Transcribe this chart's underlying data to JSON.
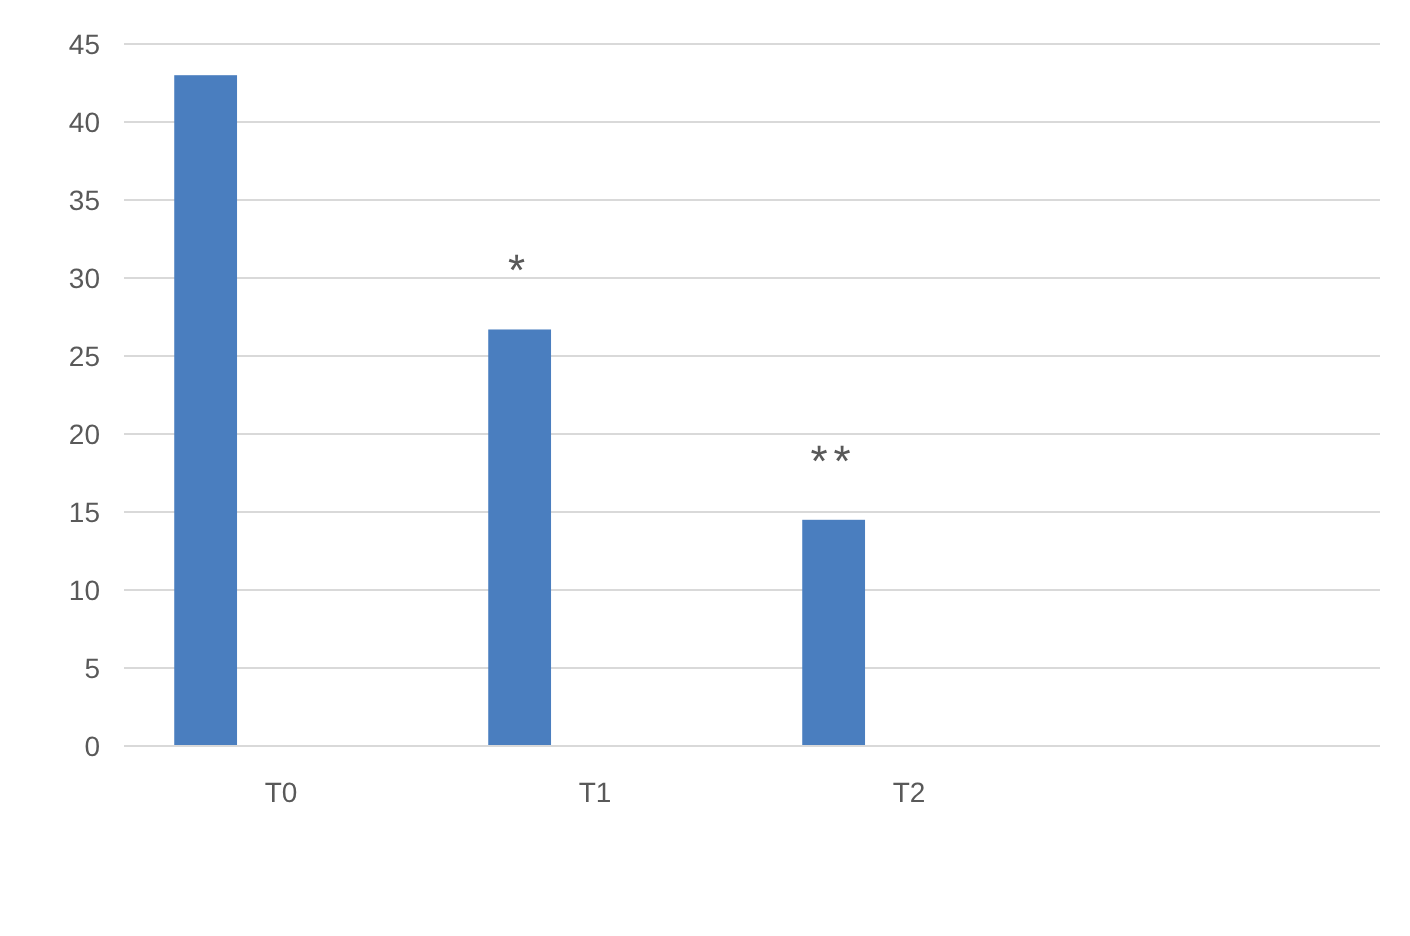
{
  "chart_data": {
    "type": "bar",
    "categories": [
      "T0",
      "T1",
      "T2",
      null
    ],
    "series": [
      {
        "color": "#4a7ebf",
        "values": [
          43,
          26.7,
          14.5,
          null
        ]
      }
    ],
    "ylim": [
      0,
      45
    ],
    "yticks": [
      0,
      5,
      10,
      15,
      20,
      25,
      30,
      35,
      40,
      45
    ],
    "grid": "y",
    "annotations": [
      "*",
      "**"
    ]
  }
}
